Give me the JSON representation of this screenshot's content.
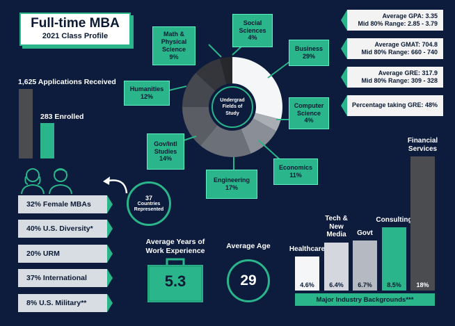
{
  "title": {
    "main": "Full-time MBA",
    "subtitle": "2021 Class Profile"
  },
  "applications": {
    "received_label": "1,625 Applications Received",
    "enrolled_label": "283 Enrolled",
    "received": 1625,
    "enrolled": 283
  },
  "pie": {
    "center_label": "Undergrad Fields of Study",
    "slices": [
      {
        "label": "Business",
        "value": "29%",
        "color": "#f4f6f8"
      },
      {
        "label": "Computer Science",
        "value": "4%",
        "color": "#a9adb4"
      },
      {
        "label": "Economics",
        "value": "11%",
        "color": "#8a8e96"
      },
      {
        "label": "Engineering",
        "value": "17%",
        "color": "#6c7078"
      },
      {
        "label": "Gov/Intl Studies",
        "value": "14%",
        "color": "#5a5d64"
      },
      {
        "label": "Humanities",
        "value": "12%",
        "color": "#45484e"
      },
      {
        "label": "Math & Physical Science",
        "value": "9%",
        "color": "#34363b"
      },
      {
        "label": "Social Sciences",
        "value": "4%",
        "color": "#26282c"
      }
    ]
  },
  "stats": {
    "gpa": {
      "line1": "Average GPA: 3.35",
      "line2": "Mid 80% Range: 2.85 - 3.79"
    },
    "gmat": {
      "line1": "Average GMAT: 704.8",
      "line2": "Mid 80% Range: 660 - 740"
    },
    "gre": {
      "line1": "Average GRE: 317.9",
      "line2": "Mid 80% Range: 309 - 328"
    },
    "gre_pct": {
      "line1": "Percentage taking GRE: 48%"
    }
  },
  "demographics": [
    "32% Female MBAs",
    "40% U.S. Diversity*",
    "20% URM",
    "37% International",
    "8% U.S. Military**"
  ],
  "countries": {
    "number": "37",
    "label": "Countries Represented"
  },
  "work_experience": {
    "label": "Average Years of Work Experience",
    "value": "5.3"
  },
  "age": {
    "label": "Average Age",
    "value": "29"
  },
  "industry": {
    "footer": "Major Industry Backgrounds***",
    "bars": [
      {
        "label": "Healthcare",
        "value": 4.6,
        "display": "4.6%",
        "color": "#f4f6f8",
        "text": "#0b1a33"
      },
      {
        "label": "Tech & New Media",
        "value": 6.4,
        "display": "6.4%",
        "color": "#d4d7dd",
        "text": "#0b1a33"
      },
      {
        "label": "Govt",
        "value": 6.7,
        "display": "6.7%",
        "color": "#b5b9c1",
        "text": "#0b1a33"
      },
      {
        "label": "Consulting",
        "value": 8.5,
        "display": "8.5%",
        "color": "#2ab58a",
        "text": "#0b1a33"
      },
      {
        "label": "Financial Services",
        "value": 18,
        "display": "18%",
        "color": "#4a4c50",
        "text": "#ffffff"
      }
    ]
  },
  "colors": {
    "background": "#0d1c3d",
    "accent": "#2ab58a",
    "light": "#f3f3f3"
  }
}
